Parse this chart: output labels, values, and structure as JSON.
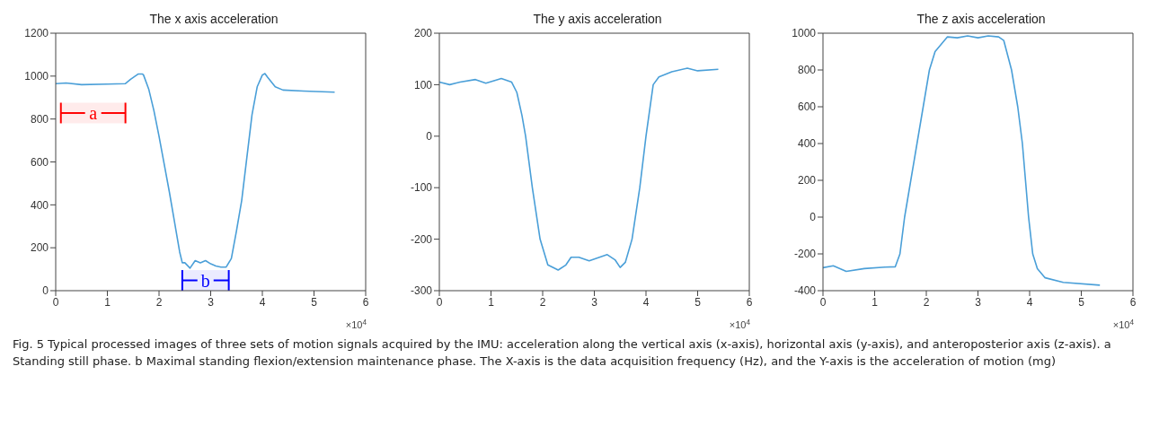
{
  "chart_data": [
    {
      "type": "line",
      "title": "The x axis acceleration",
      "xlim": [
        0,
        6
      ],
      "xticks": [
        0,
        1,
        2,
        3,
        4,
        5,
        6
      ],
      "ylim": [
        0,
        1200
      ],
      "yticks": [
        0,
        200,
        400,
        600,
        800,
        1000,
        1200
      ],
      "marker": "none",
      "series": [
        {
          "color": "#4a9fd8",
          "x": [
            0,
            0.2,
            0.5,
            1.0,
            1.35,
            1.45,
            1.6,
            1.68,
            1.7,
            1.8,
            1.9,
            2.0,
            2.1,
            2.2,
            2.3,
            2.4,
            2.45,
            2.5,
            2.6,
            2.7,
            2.8,
            2.9,
            3.0,
            3.1,
            3.2,
            3.3,
            3.4,
            3.5,
            3.6,
            3.7,
            3.8,
            3.9,
            4.0,
            4.05,
            4.1,
            4.25,
            4.4,
            4.8,
            5.4
          ],
          "values": [
            965,
            968,
            960,
            963,
            965,
            985,
            1010,
            1010,
            1005,
            940,
            840,
            720,
            590,
            460,
            320,
            180,
            130,
            130,
            105,
            140,
            130,
            140,
            125,
            115,
            110,
            110,
            150,
            280,
            420,
            620,
            820,
            950,
            1005,
            1012,
            995,
            950,
            935,
            930,
            925
          ]
        }
      ],
      "bands": [
        {
          "axis": "x",
          "from": 0.1,
          "to": 1.35,
          "label": "a",
          "color": "#ff0000"
        },
        {
          "axis": "x",
          "from": 2.45,
          "to": 3.35,
          "label": "b",
          "color": "#0000ff"
        }
      ],
      "annotations": [
        "×10$^{4}$",
        "Fig. 5  Typical processed images of three sets of motion signals acquired by the IMU: acceleration along the vertical axis (x-axis), horizontal axis (y-axis), and anteroposterior axis (z-axis). a Standing still phase. b Maximal standing flexion/extension maintenance phase. The X-axis is the data acquisition frequency (Hz), and the Y-axis is the acceleration of motion (mg)"
      ]
    },
    {
      "type": "line",
      "title": "The y axis acceleration",
      "xlim": [
        0,
        6
      ],
      "xticks": [
        0,
        1,
        2,
        3,
        4,
        5,
        6
      ],
      "ylim": [
        -300,
        200
      ],
      "yticks": [
        -300,
        -200,
        -100,
        0,
        100,
        200
      ],
      "marker": "none",
      "series": [
        {
          "color": "#4a9fd8",
          "x": [
            0,
            0.2,
            0.4,
            0.7,
            0.9,
            1.2,
            1.4,
            1.5,
            1.6,
            1.67,
            1.8,
            1.95,
            2.1,
            2.3,
            2.45,
            2.55,
            2.7,
            2.9,
            3.1,
            3.25,
            3.4,
            3.5,
            3.6,
            3.73,
            3.88,
            4.0,
            4.14,
            4.25,
            4.5,
            4.8,
            5.0,
            5.4
          ],
          "values": [
            105,
            100,
            105,
            110,
            103,
            112,
            105,
            85,
            40,
            0,
            -100,
            -200,
            -250,
            -260,
            -250,
            -235,
            -235,
            -242,
            -235,
            -230,
            -240,
            -255,
            -245,
            -200,
            -100,
            0,
            100,
            115,
            125,
            132,
            127,
            130
          ]
        }
      ],
      "annotations": [
        "×10$^{4}$"
      ]
    },
    {
      "type": "line",
      "title": "The z axis acceleration",
      "xlim": [
        0,
        6
      ],
      "xticks": [
        0,
        1,
        2,
        3,
        4,
        5,
        6
      ],
      "ylim": [
        -400,
        1000
      ],
      "yticks": [
        -400,
        -200,
        0,
        200,
        400,
        600,
        800,
        1000
      ],
      "marker": "none",
      "series": [
        {
          "color": "#4a9fd8",
          "x": [
            0,
            0.2,
            0.45,
            0.8,
            1.2,
            1.4,
            1.49,
            1.58,
            1.7,
            1.82,
            1.94,
            2.06,
            2.17,
            2.41,
            2.6,
            2.8,
            3.0,
            3.2,
            3.4,
            3.5,
            3.65,
            3.77,
            3.86,
            3.92,
            3.98,
            4.06,
            4.15,
            4.3,
            4.65,
            5.36
          ],
          "values": [
            -275,
            -265,
            -295,
            -280,
            -272,
            -270,
            -200,
            0,
            200,
            400,
            600,
            800,
            900,
            980,
            975,
            985,
            975,
            985,
            980,
            960,
            800,
            600,
            400,
            200,
            0,
            -200,
            -280,
            -330,
            -355,
            -370
          ]
        }
      ],
      "annotations": [
        "×10$^{4}$"
      ]
    }
  ]
}
